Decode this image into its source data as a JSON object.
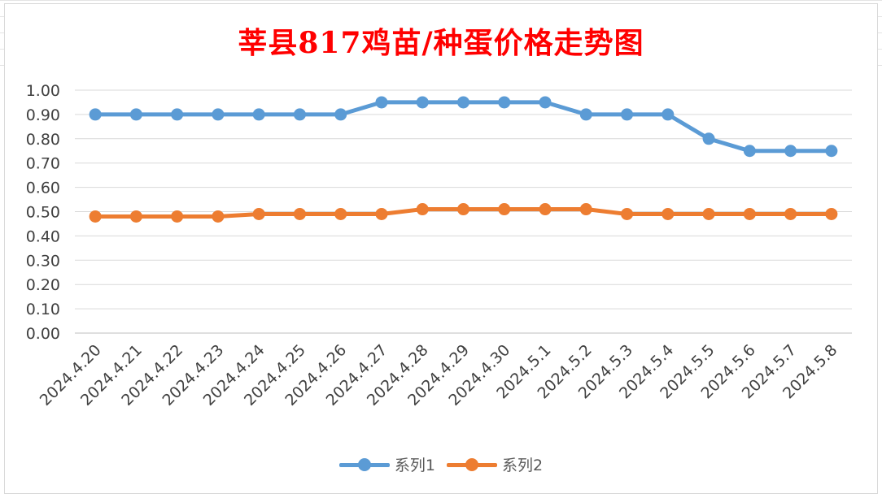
{
  "chart_data": {
    "type": "line",
    "title": "莘县817鸡苗/种蛋价格走势图",
    "xlabel": "",
    "ylabel": "",
    "categories": [
      "2024.4.20",
      "2024.4.21",
      "2024.4.22",
      "2024.4.23",
      "2024.4.24",
      "2024.4.25",
      "2024.4.26",
      "2024.4.27",
      "2024.4.28",
      "2024.4.29",
      "2024.4.30",
      "2024.5.1",
      "2024.5.2",
      "2024.5.3",
      "2024.5.4",
      "2024.5.5",
      "2024.5.6",
      "2024.5.7",
      "2024.5.8"
    ],
    "ylim": [
      0,
      1.0
    ],
    "yticks": [
      "0.00",
      "0.10",
      "0.20",
      "0.30",
      "0.40",
      "0.50",
      "0.60",
      "0.70",
      "0.80",
      "0.90",
      "1.00"
    ],
    "grid": true,
    "legend_position": "bottom",
    "series": [
      {
        "name": "系列1",
        "color": "#5b9bd5",
        "values": [
          0.9,
          0.9,
          0.9,
          0.9,
          0.9,
          0.9,
          0.9,
          0.95,
          0.95,
          0.95,
          0.95,
          0.95,
          0.9,
          0.9,
          0.9,
          0.8,
          0.75,
          0.75,
          0.75
        ]
      },
      {
        "name": "系列2",
        "color": "#ed7d31",
        "values": [
          0.48,
          0.48,
          0.48,
          0.48,
          0.49,
          0.49,
          0.49,
          0.49,
          0.51,
          0.51,
          0.51,
          0.51,
          0.51,
          0.49,
          0.49,
          0.49,
          0.49,
          0.49,
          0.49
        ]
      }
    ]
  }
}
